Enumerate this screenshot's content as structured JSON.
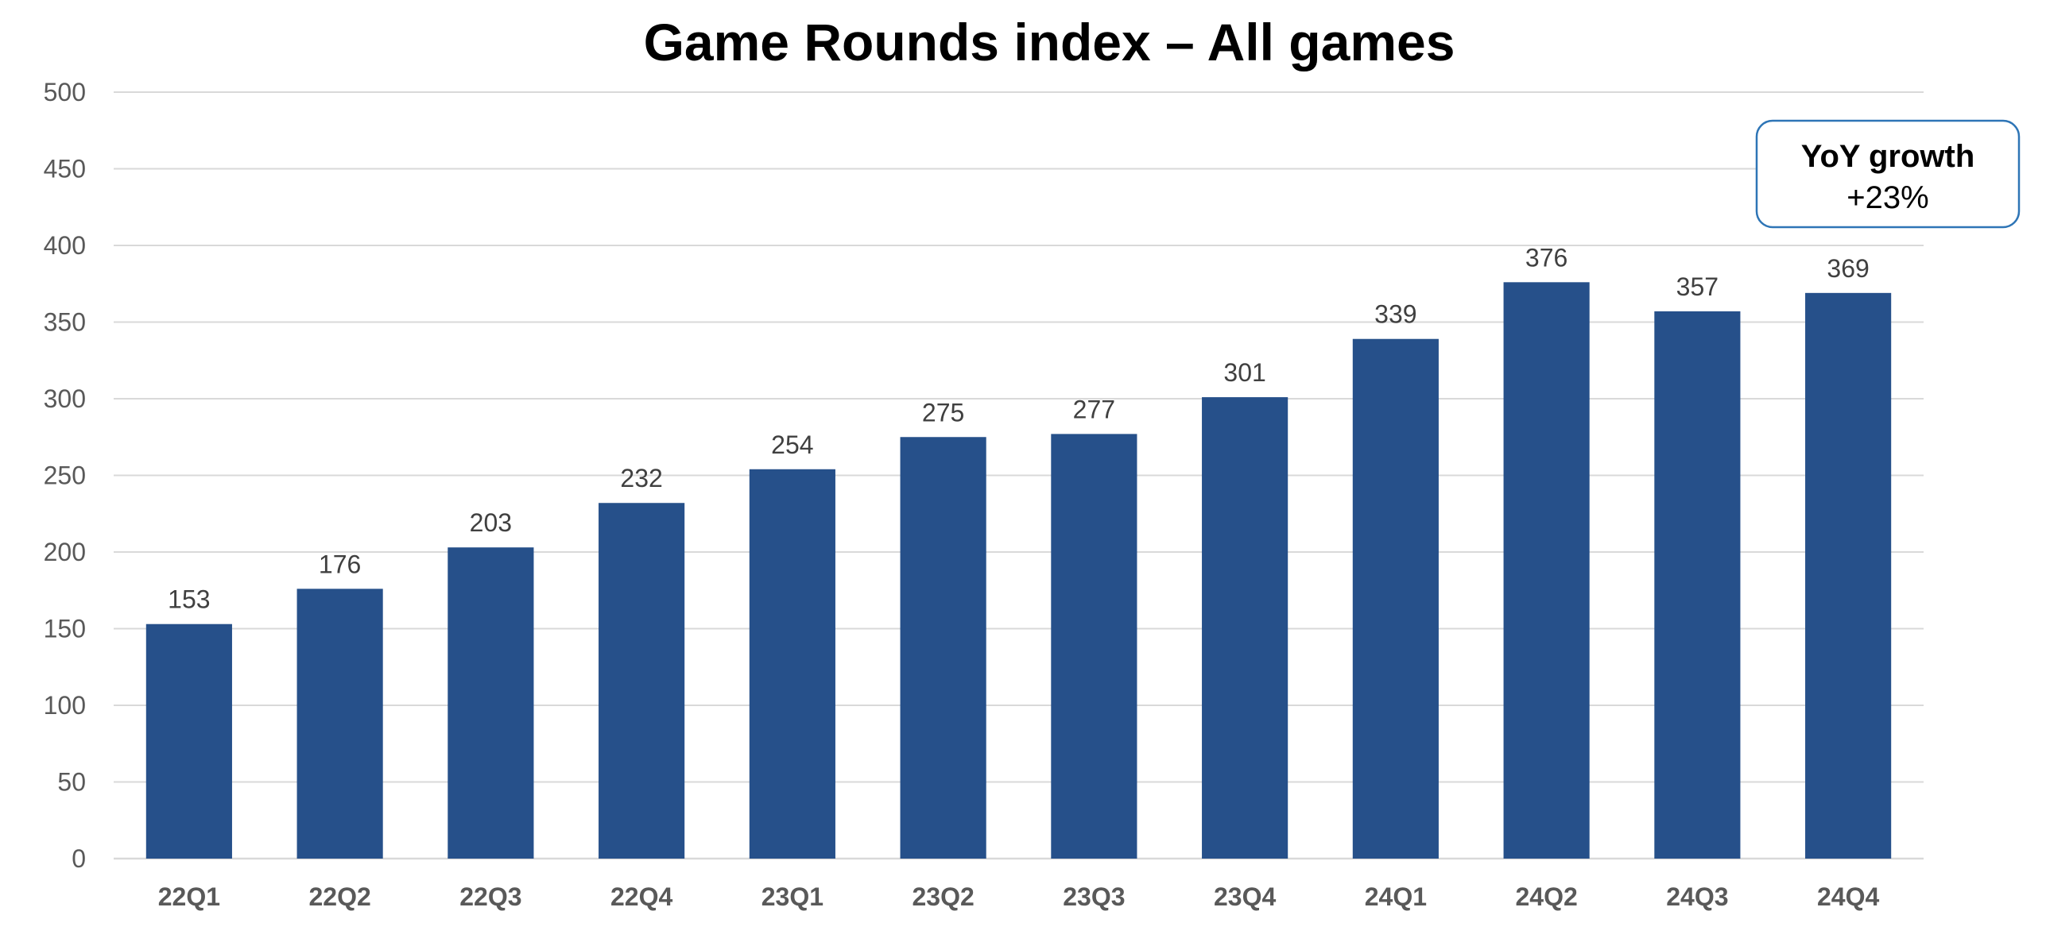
{
  "chart_data": {
    "type": "bar",
    "title": "Game Rounds index – All games",
    "categories": [
      "22Q1",
      "22Q2",
      "22Q3",
      "22Q4",
      "23Q1",
      "23Q2",
      "23Q3",
      "23Q4",
      "24Q1",
      "24Q2",
      "24Q3",
      "24Q4"
    ],
    "values": [
      153,
      176,
      203,
      232,
      254,
      275,
      277,
      301,
      339,
      376,
      357,
      369
    ],
    "xlabel": "",
    "ylabel": "",
    "ylim": [
      0,
      500
    ],
    "yticks": [
      0,
      50,
      100,
      150,
      200,
      250,
      300,
      350,
      400,
      450,
      500
    ],
    "grid": true,
    "data_labels": true,
    "legend": "none",
    "bar_color": "#26508a",
    "annotation": {
      "line1": "YoY growth",
      "line2": "+23%",
      "border_color": "#2e75b6",
      "placement": "top-right"
    }
  }
}
